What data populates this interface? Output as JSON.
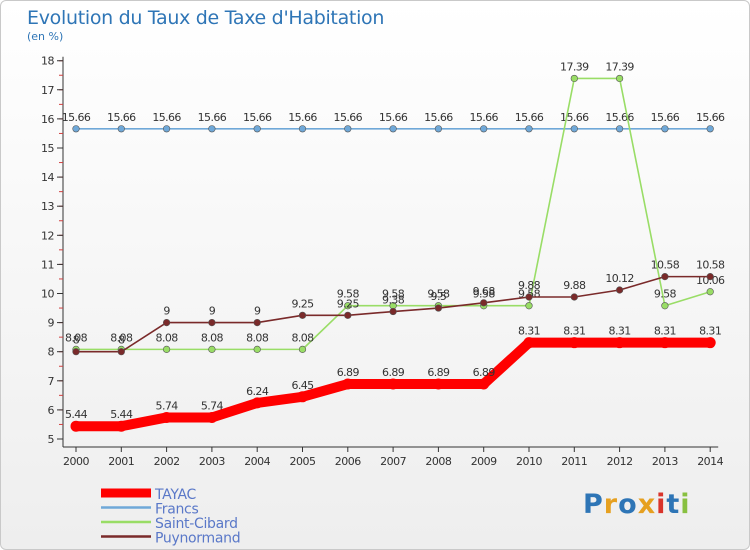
{
  "title": "Evolution du Taux de Taxe d'Habitation",
  "unit_label": "(en %)",
  "logo_text": "Proxiti",
  "chart_data": {
    "type": "line",
    "x": [
      "2000",
      "2001",
      "2002",
      "2003",
      "2004",
      "2005",
      "2006",
      "2007",
      "2008",
      "2009",
      "2010",
      "2011",
      "2012",
      "2013",
      "2014"
    ],
    "ylim": [
      5,
      18
    ],
    "yticks": [
      5,
      6,
      7,
      8,
      9,
      10,
      11,
      12,
      13,
      14,
      15,
      16,
      17,
      18
    ],
    "legend_position": "bottom-left",
    "series": [
      {
        "name": "TAYAC",
        "color": "#ff0000",
        "values": [
          5.44,
          5.44,
          5.74,
          5.74,
          6.24,
          6.45,
          6.89,
          6.89,
          6.89,
          6.89,
          8.31,
          8.31,
          8.31,
          8.31,
          8.31
        ],
        "labels": [
          "5.44",
          "5.44",
          "5.74",
          "5.74",
          "6.24",
          "6.45",
          "6.89",
          "6.89",
          "6.89",
          "6.89",
          "8.31",
          "8.31",
          "8.31",
          "8.31",
          "8.31"
        ]
      },
      {
        "name": "Francs",
        "color": "#6fa8d8",
        "values": [
          15.66,
          15.66,
          15.66,
          15.66,
          15.66,
          15.66,
          15.66,
          15.66,
          15.66,
          15.66,
          15.66,
          15.66,
          15.66,
          15.66,
          15.66
        ],
        "labels": [
          "15.66",
          "15.66",
          "15.66",
          "15.66",
          "15.66",
          "15.66",
          "15.66",
          "15.66",
          "15.66",
          "15.66",
          "15.66",
          "15.66",
          "15.66",
          "15.66",
          "15.66"
        ]
      },
      {
        "name": "Saint-Cibard",
        "color": "#99dd66",
        "values": [
          8.08,
          8.08,
          8.08,
          8.08,
          8.08,
          8.08,
          9.58,
          9.58,
          9.58,
          9.58,
          9.58,
          17.39,
          17.39,
          9.58,
          10.06
        ],
        "labels": [
          "8.08",
          "8.08",
          "8.08",
          "8.08",
          "8.08",
          "8.08",
          "9.58",
          "9.58",
          "9.58",
          "9.58",
          "9.58",
          "17.39",
          "17.39",
          "9.58",
          "10.06"
        ]
      },
      {
        "name": "Puynormand",
        "color": "#7a2a2a",
        "values": [
          8,
          8,
          9,
          9,
          9,
          9.25,
          9.25,
          9.38,
          9.5,
          9.68,
          9.88,
          9.88,
          10.12,
          10.58,
          10.58
        ],
        "labels": [
          "8",
          "8",
          "9",
          "9",
          "9",
          "9.25",
          "9.25",
          "9.38",
          "9.5",
          "9.68",
          "9.88",
          "9.88",
          "10.12",
          "10.58",
          "10.58"
        ]
      }
    ]
  }
}
